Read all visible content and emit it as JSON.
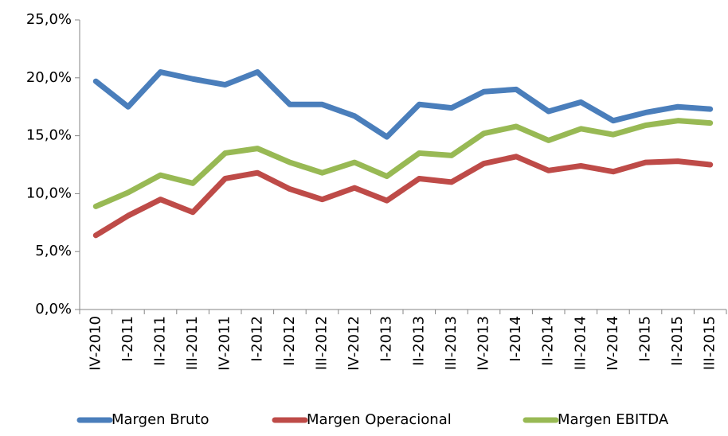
{
  "chart_data": {
    "type": "line",
    "categories": [
      "IV-2010",
      "I-2011",
      "II-2011",
      "III-2011",
      "IV-2011",
      "I-2012",
      "II-2012",
      "III-2012",
      "IV-2012",
      "I-2013",
      "II-2013",
      "III-2013",
      "IV-2013",
      "I-2014",
      "II-2014",
      "III-2014",
      "IV-2014",
      "I-2015",
      "II-2015",
      "III-2015"
    ],
    "series": [
      {
        "name": "Margen Bruto",
        "color": "#4a7ebb",
        "values": [
          19.7,
          17.5,
          20.5,
          19.9,
          19.4,
          20.5,
          17.7,
          17.7,
          16.7,
          14.9,
          17.7,
          17.4,
          18.8,
          19.0,
          17.1,
          17.9,
          16.3,
          17.0,
          17.5,
          17.3
        ]
      },
      {
        "name": "Margen Operacional",
        "color": "#be4b48",
        "values": [
          6.4,
          8.1,
          9.5,
          8.4,
          11.3,
          11.8,
          10.4,
          9.5,
          10.5,
          9.4,
          11.3,
          11.0,
          12.6,
          13.2,
          12.0,
          12.4,
          11.9,
          12.7,
          12.8,
          12.5
        ]
      },
      {
        "name": "Margen EBITDA",
        "color": "#98b954",
        "values": [
          8.9,
          10.1,
          11.6,
          10.9,
          13.5,
          13.9,
          12.7,
          11.8,
          12.7,
          11.5,
          13.5,
          13.3,
          15.2,
          15.8,
          14.6,
          15.6,
          15.1,
          15.9,
          16.3,
          16.1
        ]
      }
    ],
    "ylim": [
      0,
      25
    ],
    "yticks": [
      {
        "value": 0,
        "label": "0,0%"
      },
      {
        "value": 5,
        "label": "5,0%"
      },
      {
        "value": 10,
        "label": "10,0%"
      },
      {
        "value": 15,
        "label": "15,0%"
      },
      {
        "value": 20,
        "label": "20,0%"
      },
      {
        "value": 25,
        "label": "25,0%"
      }
    ],
    "legend": "bottom"
  }
}
